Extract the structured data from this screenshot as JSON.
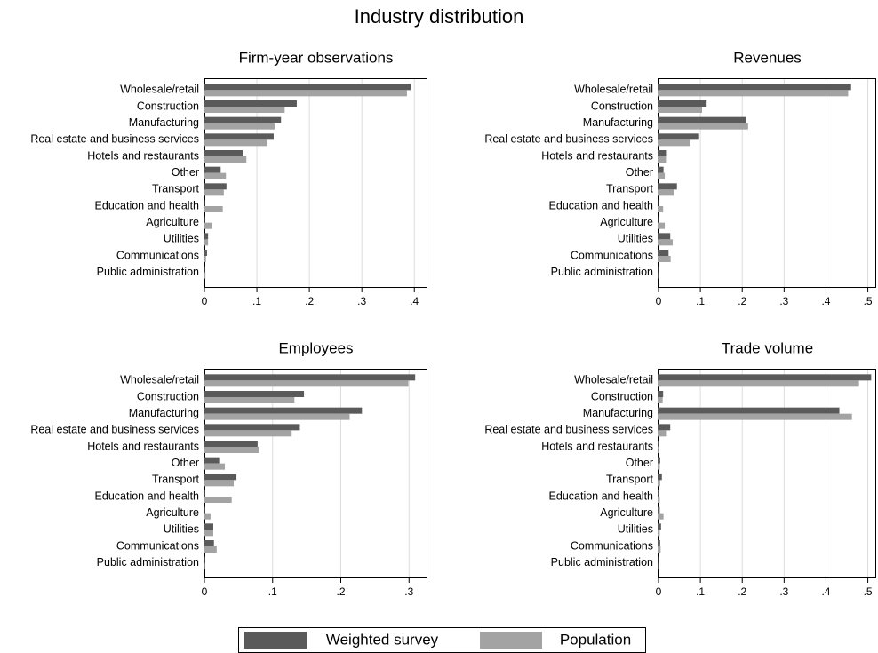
{
  "title": "Industry distribution",
  "chart_data": [
    {
      "type": "bar",
      "orientation": "horizontal",
      "title": "Firm-year observations",
      "categories": [
        "Wholesale/retail",
        "Construction",
        "Manufacturing",
        "Real estate and business services",
        "Hotels and restaurants",
        "Other",
        "Transport",
        "Education and health",
        "Agriculture",
        "Utilities",
        "Communications",
        "Public administration"
      ],
      "series": [
        {
          "name": "Weighted survey",
          "color": "#5a5a5a",
          "values": [
            0.393,
            0.176,
            0.146,
            0.132,
            0.073,
            0.031,
            0.042,
            0.001,
            0.001,
            0.007,
            0.005,
            0.001
          ]
        },
        {
          "name": "Population",
          "color": "#a3a3a3",
          "values": [
            0.386,
            0.153,
            0.134,
            0.119,
            0.08,
            0.041,
            0.037,
            0.035,
            0.015,
            0.007,
            0.003,
            0.002
          ]
        }
      ],
      "xlim": [
        0,
        0.425
      ],
      "xticks": [
        0,
        {
          "value": 0.1,
          "label": ".1"
        },
        {
          "value": 0.2,
          "label": ".2"
        },
        {
          "value": 0.3,
          "label": ".3"
        },
        {
          "value": 0.4,
          "label": ".4"
        }
      ],
      "grid": true
    },
    {
      "type": "bar",
      "orientation": "horizontal",
      "title": "Revenues",
      "categories": [
        "Wholesale/retail",
        "Construction",
        "Manufacturing",
        "Real estate and business services",
        "Hotels and restaurants",
        "Other",
        "Transport",
        "Education and health",
        "Agriculture",
        "Utilities",
        "Communications",
        "Public administration"
      ],
      "series": [
        {
          "name": "Weighted survey",
          "color": "#5a5a5a",
          "values": [
            0.46,
            0.115,
            0.21,
            0.097,
            0.02,
            0.012,
            0.044,
            0.001,
            0.001,
            0.028,
            0.024,
            0.001
          ]
        },
        {
          "name": "Population",
          "color": "#a3a3a3",
          "values": [
            0.453,
            0.104,
            0.214,
            0.076,
            0.02,
            0.015,
            0.037,
            0.011,
            0.015,
            0.034,
            0.029,
            0.001
          ]
        }
      ],
      "xlim": [
        0,
        0.52
      ],
      "xticks": [
        0,
        {
          "value": 0.1,
          "label": ".1"
        },
        {
          "value": 0.2,
          "label": ".2"
        },
        {
          "value": 0.3,
          "label": ".3"
        },
        {
          "value": 0.4,
          "label": ".4"
        },
        {
          "value": 0.5,
          "label": ".5"
        }
      ],
      "grid": true
    },
    {
      "type": "bar",
      "orientation": "horizontal",
      "title": "Employees",
      "categories": [
        "Wholesale/retail",
        "Construction",
        "Manufacturing",
        "Real estate and business services",
        "Hotels and restaurants",
        "Other",
        "Transport",
        "Education and health",
        "Agriculture",
        "Utilities",
        "Communications",
        "Public administration"
      ],
      "series": [
        {
          "name": "Weighted survey",
          "color": "#5a5a5a",
          "values": [
            0.309,
            0.146,
            0.231,
            0.14,
            0.078,
            0.023,
            0.047,
            0.001,
            0.001,
            0.013,
            0.014,
            0.001
          ]
        },
        {
          "name": "Population",
          "color": "#a3a3a3",
          "values": [
            0.299,
            0.132,
            0.213,
            0.128,
            0.08,
            0.03,
            0.043,
            0.04,
            0.009,
            0.013,
            0.018,
            0.001
          ]
        }
      ],
      "xlim": [
        0,
        0.327
      ],
      "xticks": [
        0,
        {
          "value": 0.1,
          "label": ".1"
        },
        {
          "value": 0.2,
          "label": ".2"
        },
        {
          "value": 0.3,
          "label": ".3"
        }
      ],
      "grid": true
    },
    {
      "type": "bar",
      "orientation": "horizontal",
      "title": "Trade volume",
      "categories": [
        "Wholesale/retail",
        "Construction",
        "Manufacturing",
        "Real estate and business services",
        "Hotels and restaurants",
        "Other",
        "Transport",
        "Education and health",
        "Agriculture",
        "Utilities",
        "Communications",
        "Public administration"
      ],
      "series": [
        {
          "name": "Weighted survey",
          "color": "#5a5a5a",
          "values": [
            0.508,
            0.011,
            0.432,
            0.028,
            0.002,
            0.004,
            0.008,
            0.002,
            0.003,
            0.006,
            0.004,
            0.001
          ]
        },
        {
          "name": "Population",
          "color": "#a3a3a3",
          "values": [
            0.479,
            0.01,
            0.462,
            0.02,
            0.002,
            0.003,
            0.004,
            0.003,
            0.012,
            0.003,
            0.005,
            0.001
          ]
        }
      ],
      "xlim": [
        0,
        0.52
      ],
      "xticks": [
        0,
        {
          "value": 0.1,
          "label": ".1"
        },
        {
          "value": 0.2,
          "label": ".2"
        },
        {
          "value": 0.3,
          "label": ".3"
        },
        {
          "value": 0.4,
          "label": ".4"
        },
        {
          "value": 0.5,
          "label": ".5"
        }
      ],
      "grid": true
    }
  ]
}
